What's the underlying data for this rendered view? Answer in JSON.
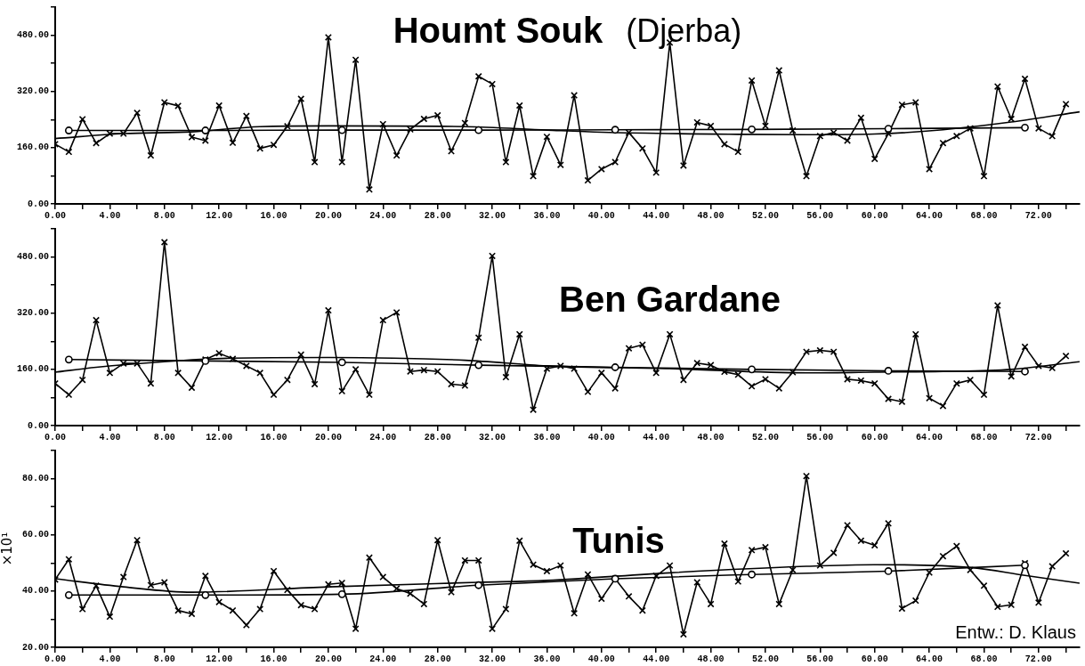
{
  "chart_data": [
    {
      "type": "line",
      "title": "Houmt Souk",
      "subtitle": "(Djerba)",
      "xlim": [
        0,
        75
      ],
      "xticks": [
        {
          "value": 0,
          "label": "0.00"
        },
        {
          "value": 2,
          "label": null
        },
        {
          "value": 4,
          "label": "4.00"
        },
        {
          "value": 6,
          "label": null
        },
        {
          "value": 8,
          "label": "8.00"
        },
        {
          "value": 10,
          "label": null
        },
        {
          "value": 12,
          "label": "12.00"
        },
        {
          "value": 14,
          "label": null
        },
        {
          "value": 16,
          "label": "16.00"
        },
        {
          "value": 18,
          "label": null
        },
        {
          "value": 20,
          "label": "20.00"
        },
        {
          "value": 22,
          "label": null
        },
        {
          "value": 24,
          "label": "24.00"
        },
        {
          "value": 26,
          "label": null
        },
        {
          "value": 28,
          "label": "28.00"
        },
        {
          "value": 30,
          "label": null
        },
        {
          "value": 32,
          "label": "32.00"
        },
        {
          "value": 34,
          "label": null
        },
        {
          "value": 36,
          "label": "36.00"
        },
        {
          "value": 38,
          "label": null
        },
        {
          "value": 40,
          "label": "40.00"
        },
        {
          "value": 42,
          "label": null
        },
        {
          "value": 44,
          "label": "44.00"
        },
        {
          "value": 46,
          "label": null
        },
        {
          "value": 48,
          "label": "48.00"
        },
        {
          "value": 50,
          "label": null
        },
        {
          "value": 52,
          "label": "52.00"
        },
        {
          "value": 54,
          "label": null
        },
        {
          "value": 56,
          "label": "56.00"
        },
        {
          "value": 58,
          "label": null
        },
        {
          "value": 60,
          "label": "60.00"
        },
        {
          "value": 62,
          "label": null
        },
        {
          "value": 64,
          "label": "64.00"
        },
        {
          "value": 66,
          "label": null
        },
        {
          "value": 68,
          "label": "68.00"
        },
        {
          "value": 70,
          "label": null
        },
        {
          "value": 72,
          "label": "72.00"
        },
        {
          "value": 74,
          "label": null
        }
      ],
      "ylim": [
        0,
        560
      ],
      "yticks": [
        {
          "value": 0,
          "label": "0.00"
        },
        {
          "value": 80,
          "label": null
        },
        {
          "value": 160,
          "label": "160.00"
        },
        {
          "value": 240,
          "label": null
        },
        {
          "value": 320,
          "label": "320.00"
        },
        {
          "value": 400,
          "label": null
        },
        {
          "value": 480,
          "label": "480.00"
        },
        {
          "value": 560,
          "label": null
        }
      ],
      "series": [
        {
          "color": "#000000",
          "marker": "cross",
          "x": [
            0,
            1,
            2,
            3,
            4,
            5,
            6,
            7,
            8,
            9,
            10,
            11,
            12,
            13,
            14,
            15,
            16,
            17,
            18,
            19,
            20,
            21,
            22,
            23,
            24,
            25,
            26,
            27,
            28,
            29,
            30,
            31,
            32,
            33,
            34,
            35,
            36,
            37,
            38,
            39,
            40,
            41,
            42,
            43,
            44,
            45,
            46,
            47,
            48,
            49,
            50,
            51,
            52,
            53,
            54,
            55,
            56,
            57,
            58,
            59,
            60,
            61,
            62,
            63,
            64,
            65,
            66,
            67,
            68,
            69,
            70,
            71,
            72,
            73,
            74
          ],
          "values": [
            170,
            148,
            241,
            173,
            200,
            200,
            259,
            138,
            289,
            279,
            190,
            180,
            280,
            174,
            250,
            158,
            168,
            221,
            299,
            119,
            474,
            119,
            410,
            41,
            227,
            138,
            212,
            242,
            252,
            150,
            230,
            363,
            341,
            119,
            280,
            79,
            191,
            111,
            309,
            67,
            99,
            119,
            203,
            158,
            89,
            459,
            109,
            232,
            222,
            170,
            148,
            351,
            222,
            380,
            209,
            79,
            193,
            203,
            180,
            245,
            128,
            200,
            282,
            289,
            99,
            173,
            193,
            215,
            79,
            334,
            242,
            356,
            215,
            193,
            284
          ]
        },
        {
          "color": "#000000",
          "marker": "circle",
          "x": [
            1,
            11,
            21,
            31,
            41,
            51,
            61,
            71
          ],
          "values": [
            209,
            209,
            210,
            210,
            211,
            212,
            214,
            217
          ]
        },
        {
          "color": "#000000",
          "marker": "none",
          "x": [
            0,
            5,
            10,
            15,
            20,
            30,
            36,
            40,
            50,
            55,
            60,
            65,
            70,
            75
          ],
          "values": [
            186,
            200,
            205,
            220,
            222,
            220,
            210,
            204,
            198,
            197,
            199,
            211,
            233,
            262
          ]
        }
      ]
    },
    {
      "type": "line",
      "title": "Ben Gardane",
      "xlim": [
        0,
        75
      ],
      "xticks": [
        {
          "value": 0,
          "label": "0.00"
        },
        {
          "value": 2,
          "label": null
        },
        {
          "value": 4,
          "label": "4.00"
        },
        {
          "value": 6,
          "label": null
        },
        {
          "value": 8,
          "label": "8.00"
        },
        {
          "value": 10,
          "label": null
        },
        {
          "value": 12,
          "label": "12.00"
        },
        {
          "value": 14,
          "label": null
        },
        {
          "value": 16,
          "label": "16.00"
        },
        {
          "value": 18,
          "label": null
        },
        {
          "value": 20,
          "label": "20.00"
        },
        {
          "value": 22,
          "label": null
        },
        {
          "value": 24,
          "label": "24.00"
        },
        {
          "value": 26,
          "label": null
        },
        {
          "value": 28,
          "label": "28.00"
        },
        {
          "value": 30,
          "label": null
        },
        {
          "value": 32,
          "label": "32.00"
        },
        {
          "value": 34,
          "label": null
        },
        {
          "value": 36,
          "label": "36.00"
        },
        {
          "value": 38,
          "label": null
        },
        {
          "value": 40,
          "label": "40.00"
        },
        {
          "value": 42,
          "label": null
        },
        {
          "value": 44,
          "label": "44.00"
        },
        {
          "value": 46,
          "label": null
        },
        {
          "value": 48,
          "label": "48.00"
        },
        {
          "value": 50,
          "label": null
        },
        {
          "value": 52,
          "label": "52.00"
        },
        {
          "value": 54,
          "label": null
        },
        {
          "value": 56,
          "label": "56.00"
        },
        {
          "value": 58,
          "label": null
        },
        {
          "value": 60,
          "label": "60.00"
        },
        {
          "value": 62,
          "label": null
        },
        {
          "value": 64,
          "label": "64.00"
        },
        {
          "value": 66,
          "label": null
        },
        {
          "value": 68,
          "label": "68.00"
        },
        {
          "value": 70,
          "label": null
        },
        {
          "value": 72,
          "label": "72.00"
        },
        {
          "value": 74,
          "label": null
        }
      ],
      "ylim": [
        0,
        560
      ],
      "yticks": [
        {
          "value": 0,
          "label": "0.00"
        },
        {
          "value": 80,
          "label": null
        },
        {
          "value": 160,
          "label": "160.00"
        },
        {
          "value": 240,
          "label": null
        },
        {
          "value": 320,
          "label": "320.00"
        },
        {
          "value": 400,
          "label": null
        },
        {
          "value": 480,
          "label": "480.00"
        },
        {
          "value": 560,
          "label": null
        }
      ],
      "series": [
        {
          "color": "#000000",
          "marker": "cross",
          "x": [
            0,
            1,
            2,
            3,
            4,
            5,
            6,
            7,
            8,
            9,
            10,
            11,
            12,
            13,
            14,
            15,
            16,
            17,
            18,
            19,
            20,
            21,
            22,
            23,
            24,
            25,
            26,
            27,
            28,
            29,
            30,
            31,
            32,
            33,
            34,
            35,
            36,
            37,
            38,
            39,
            40,
            41,
            42,
            43,
            44,
            45,
            46,
            47,
            48,
            49,
            50,
            51,
            52,
            53,
            54,
            55,
            56,
            57,
            58,
            59,
            60,
            61,
            62,
            63,
            64,
            65,
            66,
            67,
            68,
            69,
            70,
            71,
            72,
            73,
            74
          ],
          "values": [
            120,
            88,
            130,
            300,
            150,
            177,
            177,
            120,
            522,
            150,
            108,
            188,
            206,
            190,
            170,
            150,
            88,
            130,
            202,
            118,
            328,
            98,
            160,
            88,
            300,
            322,
            154,
            158,
            154,
            118,
            114,
            250,
            483,
            138,
            260,
            45,
            162,
            170,
            162,
            96,
            150,
            106,
            220,
            230,
            150,
            260,
            130,
            178,
            172,
            153,
            145,
            112,
            132,
            106,
            152,
            210,
            214,
            210,
            132,
            128,
            120,
            76,
            68,
            260,
            78,
            56,
            120,
            130,
            88,
            342,
            140,
            224,
            170,
            164,
            198
          ]
        },
        {
          "color": "#000000",
          "marker": "circle",
          "x": [
            1,
            11,
            21,
            31,
            41,
            51,
            61,
            71
          ],
          "values": [
            188,
            184,
            180,
            172,
            166,
            160,
            156,
            154
          ]
        },
        {
          "color": "#000000",
          "marker": "none",
          "x": [
            0,
            3,
            8,
            13,
            20,
            30,
            36,
            45,
            55,
            60,
            65,
            70,
            75
          ],
          "values": [
            152,
            166,
            182,
            192,
            194,
            186,
            170,
            162,
            150,
            152,
            154,
            160,
            182
          ]
        }
      ]
    },
    {
      "type": "line",
      "title": "Tunis",
      "ylabel": "×10¹",
      "annotations": [
        "Entw.: D. Klaus"
      ],
      "xlim": [
        0,
        75
      ],
      "xticks": [
        {
          "value": 0,
          "label": "0.00"
        },
        {
          "value": 2,
          "label": null
        },
        {
          "value": 4,
          "label": "4.00"
        },
        {
          "value": 6,
          "label": null
        },
        {
          "value": 8,
          "label": "8.00"
        },
        {
          "value": 10,
          "label": null
        },
        {
          "value": 12,
          "label": "12.00"
        },
        {
          "value": 14,
          "label": null
        },
        {
          "value": 16,
          "label": "16.00"
        },
        {
          "value": 18,
          "label": null
        },
        {
          "value": 20,
          "label": "20.00"
        },
        {
          "value": 22,
          "label": null
        },
        {
          "value": 24,
          "label": "24.00"
        },
        {
          "value": 26,
          "label": null
        },
        {
          "value": 28,
          "label": "28.00"
        },
        {
          "value": 30,
          "label": null
        },
        {
          "value": 32,
          "label": "32.00"
        },
        {
          "value": 34,
          "label": null
        },
        {
          "value": 36,
          "label": "36.00"
        },
        {
          "value": 38,
          "label": null
        },
        {
          "value": 40,
          "label": "40.00"
        },
        {
          "value": 42,
          "label": null
        },
        {
          "value": 44,
          "label": "44.00"
        },
        {
          "value": 46,
          "label": null
        },
        {
          "value": 48,
          "label": "48.00"
        },
        {
          "value": 50,
          "label": null
        },
        {
          "value": 52,
          "label": "52.00"
        },
        {
          "value": 54,
          "label": null
        },
        {
          "value": 56,
          "label": "56.00"
        },
        {
          "value": 58,
          "label": null
        },
        {
          "value": 60,
          "label": "60.00"
        },
        {
          "value": 62,
          "label": null
        },
        {
          "value": 64,
          "label": "64.00"
        },
        {
          "value": 66,
          "label": null
        },
        {
          "value": 68,
          "label": "68.00"
        },
        {
          "value": 70,
          "label": null
        },
        {
          "value": 72,
          "label": "72.00"
        },
        {
          "value": 74,
          "label": null
        }
      ],
      "ylim": [
        20,
        90
      ],
      "yticks": [
        {
          "value": 20,
          "label": "20.00"
        },
        {
          "value": 30,
          "label": null
        },
        {
          "value": 40,
          "label": "40.00"
        },
        {
          "value": 50,
          "label": null
        },
        {
          "value": 60,
          "label": "60.00"
        },
        {
          "value": 70,
          "label": null
        },
        {
          "value": 80,
          "label": "80.00"
        },
        {
          "value": 90,
          "label": null
        }
      ],
      "series": [
        {
          "color": "#000000",
          "marker": "cross",
          "x": [
            0,
            1,
            2,
            3,
            4,
            5,
            6,
            7,
            8,
            9,
            10,
            11,
            12,
            13,
            14,
            15,
            16,
            17,
            18,
            19,
            20,
            21,
            22,
            23,
            24,
            25,
            26,
            27,
            28,
            29,
            30,
            31,
            32,
            33,
            34,
            35,
            36,
            37,
            38,
            39,
            40,
            41,
            42,
            43,
            44,
            45,
            46,
            47,
            48,
            49,
            50,
            51,
            52,
            53,
            54,
            55,
            56,
            57,
            58,
            59,
            60,
            61,
            62,
            63,
            64,
            65,
            66,
            67,
            68,
            69,
            70,
            71,
            72,
            73,
            74
          ],
          "values": [
            44.1,
            51.3,
            33.6,
            41.9,
            30.9,
            45.0,
            58.1,
            42.1,
            43.1,
            33.1,
            31.9,
            45.4,
            36.1,
            33.1,
            27.9,
            33.6,
            47.1,
            40.4,
            35.0,
            33.6,
            42.4,
            42.9,
            26.6,
            51.9,
            45.0,
            40.9,
            39.1,
            35.4,
            58.1,
            39.6,
            50.9,
            50.9,
            26.6,
            33.6,
            57.9,
            49.4,
            47.1,
            49.1,
            32.1,
            45.9,
            37.3,
            44.4,
            38.1,
            33.1,
            45.4,
            49.1,
            24.6,
            43.1,
            35.4,
            56.9,
            43.4,
            54.6,
            55.6,
            35.4,
            47.5,
            80.9,
            49.1,
            53.6,
            63.4,
            57.9,
            56.3,
            64.1,
            33.8,
            36.6,
            46.6,
            52.4,
            56.0,
            47.5,
            41.9,
            34.4,
            35.1,
            49.9,
            35.9,
            48.8,
            53.4
          ]
        },
        {
          "color": "#000000",
          "marker": "circle",
          "x": [
            1,
            11,
            21,
            31,
            41,
            51,
            61,
            71
          ],
          "values": [
            38.6,
            38.6,
            38.9,
            42.1,
            44.4,
            45.9,
            47.1,
            49.2
          ]
        },
        {
          "color": "#000000",
          "marker": "none",
          "x": [
            0,
            5,
            10,
            20,
            31,
            36,
            45,
            55,
            60,
            67,
            71,
            75
          ],
          "values": [
            44.4,
            41.5,
            39.6,
            41.5,
            43.1,
            43.8,
            46.5,
            48.8,
            49.4,
            48.4,
            45.6,
            42.8
          ]
        }
      ]
    }
  ]
}
